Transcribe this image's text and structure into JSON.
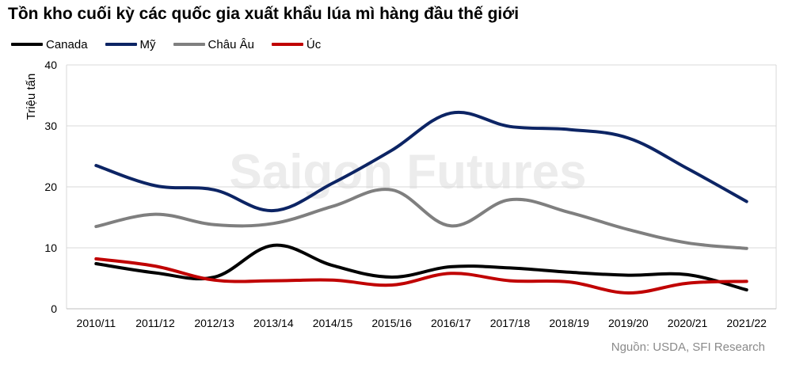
{
  "chart_data": {
    "type": "line",
    "title": "Tồn kho cuối kỳ các quốc gia xuất khẩu lúa mì hàng đầu thế giới",
    "ylabel": "Triệu tấn",
    "xlabel": "",
    "ylim": [
      0,
      40
    ],
    "yticks": [
      0,
      10,
      20,
      30,
      40
    ],
    "grid": "horizontal",
    "legend_position": "top-left",
    "categories": [
      "2010/11",
      "2011/12",
      "2012/13",
      "2013/14",
      "2014/15",
      "2015/16",
      "2016/17",
      "2017/18",
      "2018/19",
      "2019/20",
      "2020/21",
      "2021/22"
    ],
    "series": [
      {
        "name": "Canada",
        "color": "#000000",
        "values": [
          7.4,
          5.9,
          5.2,
          10.4,
          7.1,
          5.2,
          6.9,
          6.7,
          6.0,
          5.5,
          5.6,
          3.1
        ]
      },
      {
        "name": "Mỹ",
        "color": "#0c2464",
        "values": [
          23.5,
          20.2,
          19.5,
          16.1,
          20.6,
          26.0,
          32.1,
          29.9,
          29.4,
          28.0,
          23.0,
          17.6
        ]
      },
      {
        "name": "Châu Âu",
        "color": "#7f7f7f",
        "values": [
          13.5,
          15.5,
          13.8,
          14.0,
          16.8,
          19.5,
          13.6,
          17.9,
          15.8,
          13.0,
          10.8,
          9.9
        ]
      },
      {
        "name": "Úc",
        "color": "#c00000",
        "values": [
          8.2,
          7.0,
          4.7,
          4.6,
          4.7,
          3.9,
          5.8,
          4.6,
          4.4,
          2.6,
          4.2,
          4.5
        ]
      }
    ]
  },
  "watermark": "Saigon Futures",
  "source": "Nguồn: USDA, SFI Research"
}
